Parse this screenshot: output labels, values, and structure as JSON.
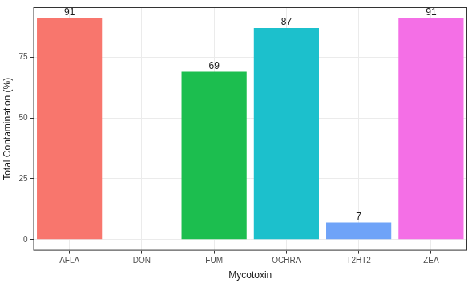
{
  "chart_data": {
    "type": "bar",
    "x_label": "Mycotoxin",
    "y_label": "Total Contamination (%)",
    "categories": [
      "AFLA",
      "DON",
      "FUM",
      "OCHRA",
      "T2HT2",
      "ZEA"
    ],
    "values": [
      91,
      null,
      69,
      87,
      7,
      91
    ],
    "colors": [
      "#F8766D",
      "#B79F00",
      "#1CBE4F",
      "#1CC0CC",
      "#6FA3F8",
      "#F46FE6"
    ],
    "ylim": [
      -4.55,
      95.55
    ],
    "yticks": [
      0,
      25,
      50,
      75
    ],
    "grid": true,
    "data_labels": true
  }
}
